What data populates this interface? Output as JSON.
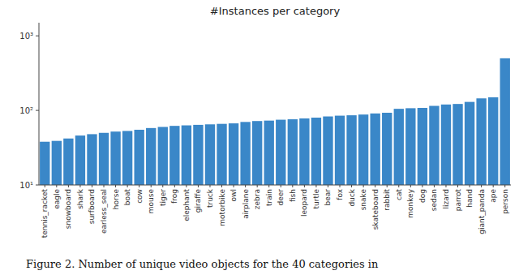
{
  "chart_data": {
    "type": "bar",
    "title": "#Instances per category",
    "caption": "Figure 2. Number of unique video objects for the 40 categories in",
    "categories": [
      "tennis_racket",
      "eagle",
      "snowboard",
      "shark",
      "surfboard",
      "earless_seal",
      "horse",
      "boat",
      "cow",
      "mouse",
      "tiger",
      "frog",
      "elephant",
      "giraffe",
      "truck",
      "motorbike",
      "owl",
      "airplane",
      "zebra",
      "train",
      "deer",
      "fish",
      "leopard",
      "turtle",
      "bear",
      "fox",
      "duck",
      "snake",
      "skateboard",
      "rabbit",
      "cat",
      "monkey",
      "dog",
      "sedan",
      "lizard",
      "parrot",
      "hand",
      "giant_panda",
      "ape",
      "person"
    ],
    "values": [
      38,
      39,
      42,
      46,
      48,
      50,
      52,
      53,
      55,
      58,
      60,
      62,
      63,
      64,
      65,
      66,
      67,
      70,
      72,
      73,
      75,
      76,
      78,
      80,
      83,
      85,
      86,
      88,
      91,
      93,
      105,
      107,
      108,
      115,
      120,
      122,
      130,
      145,
      150,
      500
    ],
    "color": "#3a87c8",
    "log": "y",
    "ylim": [
      10,
      1500
    ],
    "yticks": [
      {
        "value": 10,
        "label": "10¹"
      },
      {
        "value": 100,
        "label": "10²"
      },
      {
        "value": 1000,
        "label": "10³"
      }
    ],
    "grid": false
  }
}
